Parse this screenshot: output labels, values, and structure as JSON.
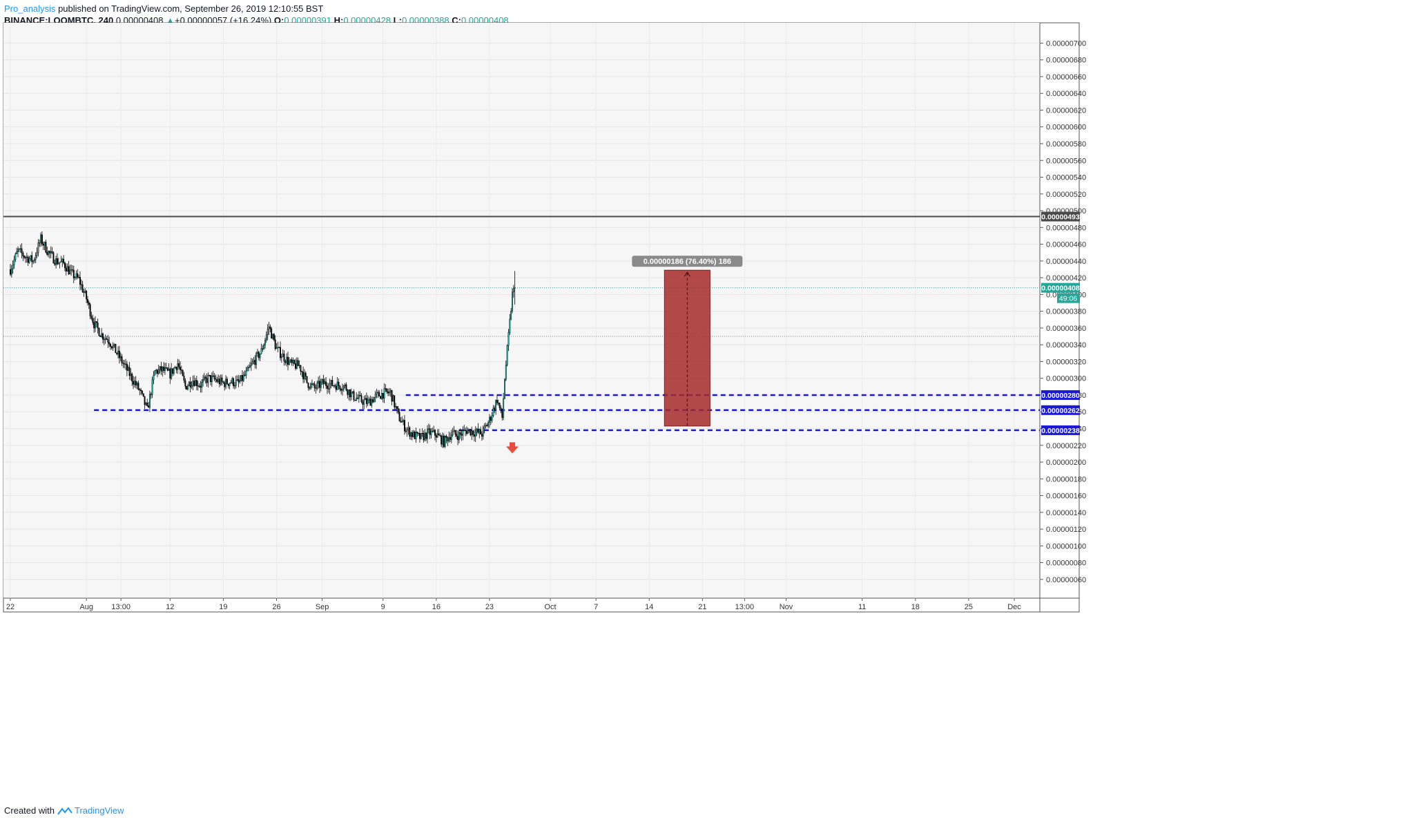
{
  "header": {
    "author": "Pro_analysis",
    "published_text": "published on TradingView.com, September 26, 2019 12:10:55 BST",
    "symbol": "BINANCE:LOOMBTC, 240",
    "last": "0.00000408",
    "change": "+0.00000057 (+16.24%)",
    "o_label": "O:",
    "o_value": "0.00000391",
    "h_label": "H:",
    "h_value": "0.00000428",
    "l_label": "L:",
    "l_value": "0.00000388",
    "c_label": "C:",
    "c_value": "0.00000408"
  },
  "footer": {
    "created_with": "Created with",
    "brand": "TradingView",
    "brand_icon": "tradingview-logo-icon"
  },
  "chart_data": {
    "type": "candlestick",
    "ylim": [
      5e-07,
      7.16e-06
    ],
    "y_ticks": [
      "0.00000700",
      "0.00000680",
      "0.00000660",
      "0.00000640",
      "0.00000620",
      "0.00000600",
      "0.00000580",
      "0.00000560",
      "0.00000540",
      "0.00000520",
      "0.00000500",
      "0.00000480",
      "0.00000460",
      "0.00000440",
      "0.00000420",
      "0.00000400",
      "0.00000380",
      "0.00000360",
      "0.00000340",
      "0.00000320",
      "0.00000300",
      "0.00000280",
      "0.00000260",
      "0.00000240",
      "0.00000220",
      "0.00000200",
      "0.00000180",
      "0.00000160",
      "0.00000140",
      "0.00000120",
      "0.00000100",
      "0.00000080",
      "0.00000060"
    ],
    "x_range": [
      "2019-07-22",
      "2019-12-03"
    ],
    "x_ticks": [
      {
        "date": "2019-07-22",
        "label": "22"
      },
      {
        "date": "2019-08-01",
        "label": "Aug"
      },
      {
        "date": "2019-08-05 13:00",
        "label": "13:00"
      },
      {
        "date": "2019-08-12",
        "label": "12"
      },
      {
        "date": "2019-08-19",
        "label": "19"
      },
      {
        "date": "2019-08-26",
        "label": "26"
      },
      {
        "date": "2019-09-01",
        "label": "Sep"
      },
      {
        "date": "2019-09-09",
        "label": "9"
      },
      {
        "date": "2019-09-16",
        "label": "16"
      },
      {
        "date": "2019-09-23",
        "label": "23"
      },
      {
        "date": "2019-10-01",
        "label": "Oct"
      },
      {
        "date": "2019-10-07",
        "label": "7"
      },
      {
        "date": "2019-10-14",
        "label": "14"
      },
      {
        "date": "2019-10-21",
        "label": "21"
      },
      {
        "date": "2019-10-26 13:00",
        "label": "13:00"
      },
      {
        "date": "2019-11-01",
        "label": "Nov"
      },
      {
        "date": "2019-11-11",
        "label": "11"
      },
      {
        "date": "2019-11-18",
        "label": "18"
      },
      {
        "date": "2019-11-25",
        "label": "25"
      },
      {
        "date": "2019-12-01",
        "label": "Dec"
      }
    ],
    "price_path": [
      [
        "2019-07-22",
        4.3e-06
      ],
      [
        "2019-07-23",
        4.52e-06
      ],
      [
        "2019-07-24",
        4.45e-06
      ],
      [
        "2019-07-25",
        4.4e-06
      ],
      [
        "2019-07-26",
        4.66e-06
      ],
      [
        "2019-07-27",
        4.5e-06
      ],
      [
        "2019-07-28",
        4.4e-06
      ],
      [
        "2019-07-29",
        4.37e-06
      ],
      [
        "2019-07-30",
        4.25e-06
      ],
      [
        "2019-07-31",
        4.18e-06
      ],
      [
        "2019-08-01",
        3.95e-06
      ],
      [
        "2019-08-02",
        3.65e-06
      ],
      [
        "2019-08-03",
        3.52e-06
      ],
      [
        "2019-08-04",
        3.45e-06
      ],
      [
        "2019-08-05",
        3.3e-06
      ],
      [
        "2019-08-06",
        3.15e-06
      ],
      [
        "2019-08-07",
        3e-06
      ],
      [
        "2019-08-08",
        2.85e-06
      ],
      [
        "2019-08-09",
        2.62e-06
      ],
      [
        "2019-08-10",
        3.08e-06
      ],
      [
        "2019-08-11",
        3.1e-06
      ],
      [
        "2019-08-12",
        3.05e-06
      ],
      [
        "2019-08-13",
        3.18e-06
      ],
      [
        "2019-08-14",
        2.9e-06
      ],
      [
        "2019-08-15",
        2.98e-06
      ],
      [
        "2019-08-16",
        2.92e-06
      ],
      [
        "2019-08-17",
        3e-06
      ],
      [
        "2019-08-18",
        2.98e-06
      ],
      [
        "2019-08-19",
        2.94e-06
      ],
      [
        "2019-08-20",
        2.96e-06
      ],
      [
        "2019-08-21",
        2.94e-06
      ],
      [
        "2019-08-22",
        3.05e-06
      ],
      [
        "2019-08-23",
        3.2e-06
      ],
      [
        "2019-08-24",
        3.32e-06
      ],
      [
        "2019-08-25",
        3.62e-06
      ],
      [
        "2019-08-26",
        3.35e-06
      ],
      [
        "2019-08-27",
        3.25e-06
      ],
      [
        "2019-08-28",
        3.16e-06
      ],
      [
        "2019-08-29",
        3.15e-06
      ],
      [
        "2019-08-30",
        2.95e-06
      ],
      [
        "2019-08-31",
        2.88e-06
      ],
      [
        "2019-09-01",
        2.94e-06
      ],
      [
        "2019-09-02",
        2.93e-06
      ],
      [
        "2019-09-03",
        2.92e-06
      ],
      [
        "2019-09-04",
        2.9e-06
      ],
      [
        "2019-09-05",
        2.79e-06
      ],
      [
        "2019-09-06",
        2.74e-06
      ],
      [
        "2019-09-07",
        2.71e-06
      ],
      [
        "2019-09-08",
        2.78e-06
      ],
      [
        "2019-09-09",
        2.82e-06
      ],
      [
        "2019-09-10",
        2.83e-06
      ],
      [
        "2019-09-11",
        2.55e-06
      ],
      [
        "2019-09-12",
        2.4e-06
      ],
      [
        "2019-09-13",
        2.32e-06
      ],
      [
        "2019-09-14",
        2.29e-06
      ],
      [
        "2019-09-15",
        2.35e-06
      ],
      [
        "2019-09-16",
        2.33e-06
      ],
      [
        "2019-09-17",
        2.24e-06
      ],
      [
        "2019-09-18",
        2.34e-06
      ],
      [
        "2019-09-19",
        2.32e-06
      ],
      [
        "2019-09-20",
        2.38e-06
      ],
      [
        "2019-09-21",
        2.36e-06
      ],
      [
        "2019-09-22",
        2.34e-06
      ],
      [
        "2019-09-23",
        2.5e-06
      ],
      [
        "2019-09-24",
        2.75e-06
      ],
      [
        "2019-09-24 16:00",
        2.53e-06
      ],
      [
        "2019-09-25",
        3e-06
      ],
      [
        "2019-09-25 12:00",
        3.5e-06
      ],
      [
        "2019-09-26",
        4e-06
      ],
      [
        "2019-09-26 08:00",
        4.08e-06
      ]
    ],
    "horizontal_levels": [
      {
        "price": 4.93e-06,
        "label": "0.00000493",
        "style": "solid",
        "color": "#4a4a4a"
      },
      {
        "price": 4.08e-06,
        "label": "0.00000408",
        "style": "dotted",
        "color": "#26a69a",
        "countdown": "49:06"
      },
      {
        "price": 3.5e-06,
        "label": "",
        "style": "dotted",
        "color": "#787b86"
      },
      {
        "price": 2.8e-06,
        "label": "0.00000280",
        "style": "dashed",
        "color": "#1a1ad6",
        "from": "2019-09-12"
      },
      {
        "price": 2.62e-06,
        "label": "0.00000262",
        "style": "dashed",
        "color": "#1a1ad6",
        "from": "2019-08-02"
      },
      {
        "price": 2.38e-06,
        "label": "0.00000238",
        "style": "dashed",
        "color": "#1a1ad6",
        "from": "2019-09-19"
      }
    ],
    "price_range_tool": {
      "from_date": "2019-10-16",
      "to_date": "2019-10-22",
      "from_price": 2.43e-06,
      "to_price": 4.29e-06,
      "label": "0.00000186 (76.40%) 186",
      "color": "#a52a2a"
    },
    "annotation": {
      "type": "down-arrow",
      "date": "2019-09-26",
      "price": 2.17e-06,
      "color": "#e74c3c"
    },
    "up_color": "#26a69a",
    "down_color": "#000000",
    "grid": true,
    "legend": "none"
  }
}
